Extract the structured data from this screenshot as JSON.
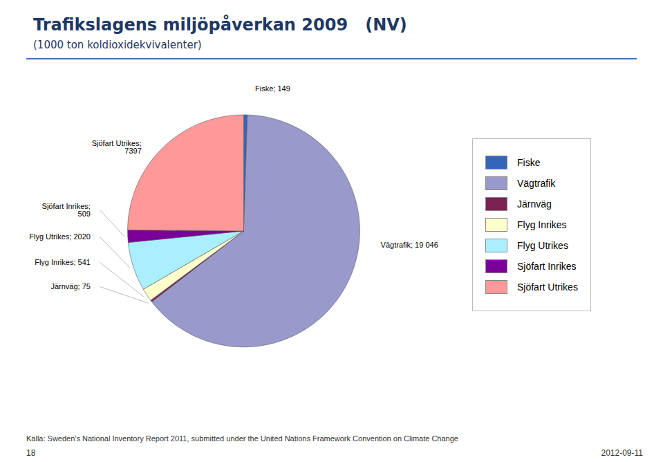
{
  "chart_data": {
    "type": "pie",
    "title": "Trafikslagens miljöpåverkan 2009   (NV)",
    "subtitle": "(1000 ton koldioxidekvivalenter)",
    "categories": [
      "Fiske",
      "Vägtrafik",
      "Järnväg",
      "Flyg Inrikes",
      "Flyg Utrikes",
      "Sjöfart Inrikes",
      "Sjöfart Utrikes"
    ],
    "values": [
      149,
      19046,
      75,
      541,
      2020,
      509,
      7397
    ],
    "colors": [
      "#3366bb",
      "#9999cc",
      "#7b2252",
      "#ffffcc",
      "#aaeeff",
      "#7b0099",
      "#ff9999"
    ],
    "data_labels": true,
    "value_labels": [
      "Fiske; 149",
      "Vägtrafik; 19 046",
      "Järnväg; 75",
      "Flyg Inrikes; 541",
      "Flyg Utrikes; 2020",
      "Sjöfart Inrikes;\n509",
      "Sjöfart Utrikes;\n7397"
    ],
    "legend": "right",
    "annotations": [
      "Källa: Sweden's National Inventory Report 2011, submitted under the United Nations Framework Convention on Climate Change",
      "18",
      "2012-09-11"
    ]
  }
}
